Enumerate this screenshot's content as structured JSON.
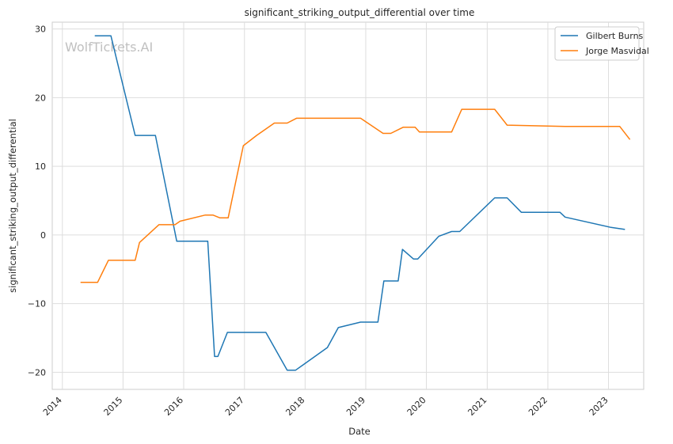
{
  "chart_data": {
    "type": "line",
    "title": "significant_striking_output_differential over time",
    "xlabel": "Date",
    "ylabel": "significant_striking_output_differential",
    "watermark": "WolfTickets.AI",
    "xlim": [
      "2013-11-01",
      "2023-08-01"
    ],
    "ylim": [
      -22.5,
      31
    ],
    "xticks": [
      "2014",
      "2015",
      "2016",
      "2017",
      "2018",
      "2019",
      "2020",
      "2021",
      "2022",
      "2023"
    ],
    "yticks": [
      -20,
      -10,
      0,
      10,
      20,
      30
    ],
    "grid": true,
    "legend_position": "top-right",
    "series": [
      {
        "name": "Gilbert Burns",
        "color": "#1f77b4",
        "points": [
          [
            "2014-07-15",
            29
          ],
          [
            "2014-10-20",
            29
          ],
          [
            "2015-03-15",
            14.5
          ],
          [
            "2015-07-15",
            14.5
          ],
          [
            "2015-11-20",
            -0.9
          ],
          [
            "2016-05-25",
            -0.9
          ],
          [
            "2016-07-05",
            -17.7
          ],
          [
            "2016-07-25",
            -17.7
          ],
          [
            "2016-09-20",
            -14.2
          ],
          [
            "2017-05-10",
            -14.2
          ],
          [
            "2017-09-15",
            -19.7
          ],
          [
            "2017-11-05",
            -19.7
          ],
          [
            "2018-05-15",
            -16.4
          ],
          [
            "2018-07-20",
            -13.5
          ],
          [
            "2018-12-01",
            -12.7
          ],
          [
            "2019-03-15",
            -12.7
          ],
          [
            "2019-04-20",
            -6.7
          ],
          [
            "2019-07-15",
            -6.7
          ],
          [
            "2019-08-10",
            -2.1
          ],
          [
            "2019-10-15",
            -3.5
          ],
          [
            "2019-11-10",
            -3.5
          ],
          [
            "2020-03-15",
            -0.2
          ],
          [
            "2020-06-01",
            0.5
          ],
          [
            "2020-07-20",
            0.5
          ],
          [
            "2021-02-15",
            5.4
          ],
          [
            "2021-05-01",
            5.4
          ],
          [
            "2021-07-25",
            3.3
          ],
          [
            "2022-03-15",
            3.3
          ],
          [
            "2022-04-15",
            2.6
          ],
          [
            "2023-01-15",
            1.1
          ],
          [
            "2023-04-10",
            0.8
          ]
        ]
      },
      {
        "name": "Jorge Masvidal",
        "color": "#ff7f0e",
        "points": [
          [
            "2014-04-20",
            -6.9
          ],
          [
            "2014-08-01",
            -6.9
          ],
          [
            "2014-10-05",
            -3.7
          ],
          [
            "2015-03-15",
            -3.7
          ],
          [
            "2015-04-10",
            -1.1
          ],
          [
            "2015-08-05",
            1.5
          ],
          [
            "2015-11-10",
            1.5
          ],
          [
            "2015-12-10",
            2
          ],
          [
            "2016-05-10",
            2.9
          ],
          [
            "2016-06-25",
            2.9
          ],
          [
            "2016-08-05",
            2.5
          ],
          [
            "2016-09-25",
            2.5
          ],
          [
            "2016-12-25",
            13
          ],
          [
            "2017-03-15",
            14.5
          ],
          [
            "2017-06-30",
            16.3
          ],
          [
            "2017-09-15",
            16.3
          ],
          [
            "2017-11-10",
            17
          ],
          [
            "2018-12-01",
            17
          ],
          [
            "2019-04-15",
            14.8
          ],
          [
            "2019-06-01",
            14.8
          ],
          [
            "2019-08-15",
            15.7
          ],
          [
            "2019-10-25",
            15.7
          ],
          [
            "2019-11-20",
            15
          ],
          [
            "2020-06-01",
            15
          ],
          [
            "2020-08-01",
            18.3
          ],
          [
            "2021-02-15",
            18.3
          ],
          [
            "2021-05-01",
            16
          ],
          [
            "2022-04-15",
            15.8
          ],
          [
            "2023-03-10",
            15.8
          ],
          [
            "2023-05-10",
            13.9
          ]
        ]
      }
    ]
  }
}
